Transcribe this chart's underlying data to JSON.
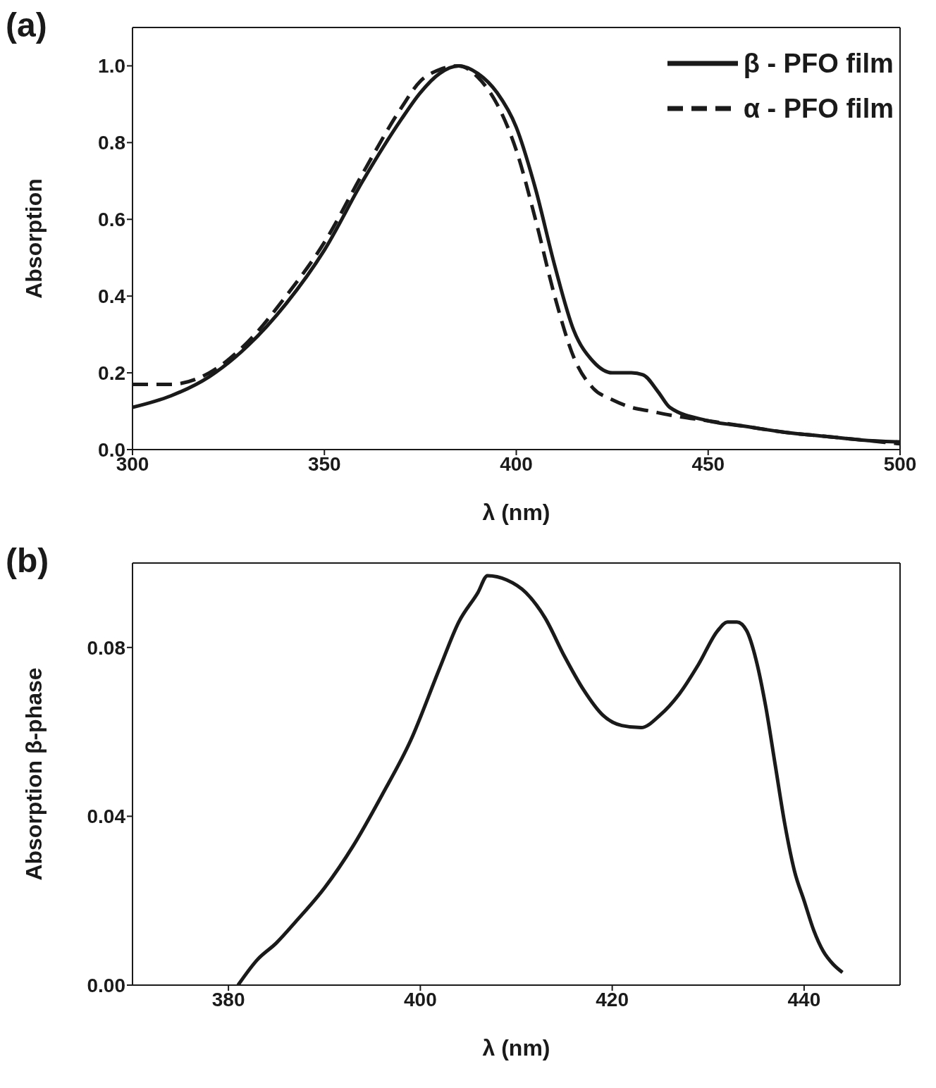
{
  "chart_data": [
    {
      "type": "line",
      "title": "(a)",
      "xlabel": "λ (nm)",
      "ylabel": "Absorption",
      "xlim": [
        300,
        500
      ],
      "xticks": [
        300,
        350,
        400,
        450,
        500
      ],
      "ylim": [
        0,
        1.1
      ],
      "yticks": [
        {
          "value": 0,
          "label": "0.0"
        },
        0.2,
        0.4,
        0.6,
        0.8,
        {
          "value": 1,
          "label": "1.0"
        }
      ],
      "legend": "top right",
      "marker": "none",
      "series": [
        {
          "name": "β - PFO film",
          "color": "#1a1a1a",
          "line_style": "solid",
          "x": [
            300,
            310,
            320,
            330,
            340,
            350,
            360,
            370,
            375,
            380,
            385,
            390,
            395,
            400,
            405,
            410,
            415,
            420,
            425,
            430,
            433,
            437,
            440,
            450,
            460,
            470,
            480,
            490,
            500
          ],
          "values": [
            0.11,
            0.14,
            0.19,
            0.27,
            0.38,
            0.52,
            0.7,
            0.86,
            0.93,
            0.98,
            1.0,
            0.98,
            0.93,
            0.84,
            0.68,
            0.48,
            0.31,
            0.23,
            0.2,
            0.2,
            0.195,
            0.15,
            0.11,
            0.075,
            0.06,
            0.045,
            0.035,
            0.025,
            0.02
          ]
        },
        {
          "name": "α - PFO film",
          "color": "#1a1a1a",
          "line_style": "dashed",
          "x": [
            300,
            305,
            310,
            320,
            330,
            340,
            350,
            360,
            370,
            375,
            380,
            385,
            390,
            395,
            400,
            405,
            410,
            415,
            420,
            425,
            430,
            435,
            440,
            450,
            460,
            470,
            480,
            490,
            500
          ],
          "values": [
            0.17,
            0.17,
            0.17,
            0.2,
            0.28,
            0.4,
            0.54,
            0.72,
            0.89,
            0.96,
            0.99,
            1.0,
            0.97,
            0.9,
            0.78,
            0.6,
            0.4,
            0.24,
            0.16,
            0.13,
            0.11,
            0.1,
            0.09,
            0.075,
            0.06,
            0.045,
            0.035,
            0.025,
            0.015
          ]
        }
      ]
    },
    {
      "type": "line",
      "title": "(b)",
      "xlabel": "λ (nm)",
      "ylabel": "Absorption β-phase",
      "xlim": [
        370,
        450
      ],
      "xticks": [
        380,
        400,
        420,
        440
      ],
      "ylim": [
        0,
        0.1
      ],
      "yticks": [
        {
          "value": 0,
          "label": "0.00"
        },
        {
          "value": 0.04,
          "label": "0.04"
        },
        {
          "value": 0.08,
          "label": "0.08"
        }
      ],
      "legend": false,
      "marker": "none",
      "series": [
        {
          "color": "#1a1a1a",
          "line_style": "solid",
          "x": [
            381,
            383,
            385,
            387,
            390,
            393,
            396,
            399,
            402,
            404,
            406,
            407,
            409,
            411,
            413,
            415,
            417,
            419,
            421,
            423,
            425,
            427,
            429,
            431,
            432,
            433,
            434,
            435,
            436,
            437,
            438,
            439,
            440,
            441,
            442,
            443,
            444
          ],
          "values": [
            0,
            0.006,
            0.01,
            0.015,
            0.023,
            0.033,
            0.045,
            0.058,
            0.075,
            0.086,
            0.093,
            0.097,
            0.096,
            0.093,
            0.087,
            0.078,
            0.07,
            0.064,
            0.0615,
            0.061,
            0.064,
            0.069,
            0.076,
            0.084,
            0.086,
            0.086,
            0.084,
            0.077,
            0.066,
            0.052,
            0.038,
            0.027,
            0.02,
            0.013,
            0.008,
            0.005,
            0.003
          ]
        }
      ]
    }
  ]
}
